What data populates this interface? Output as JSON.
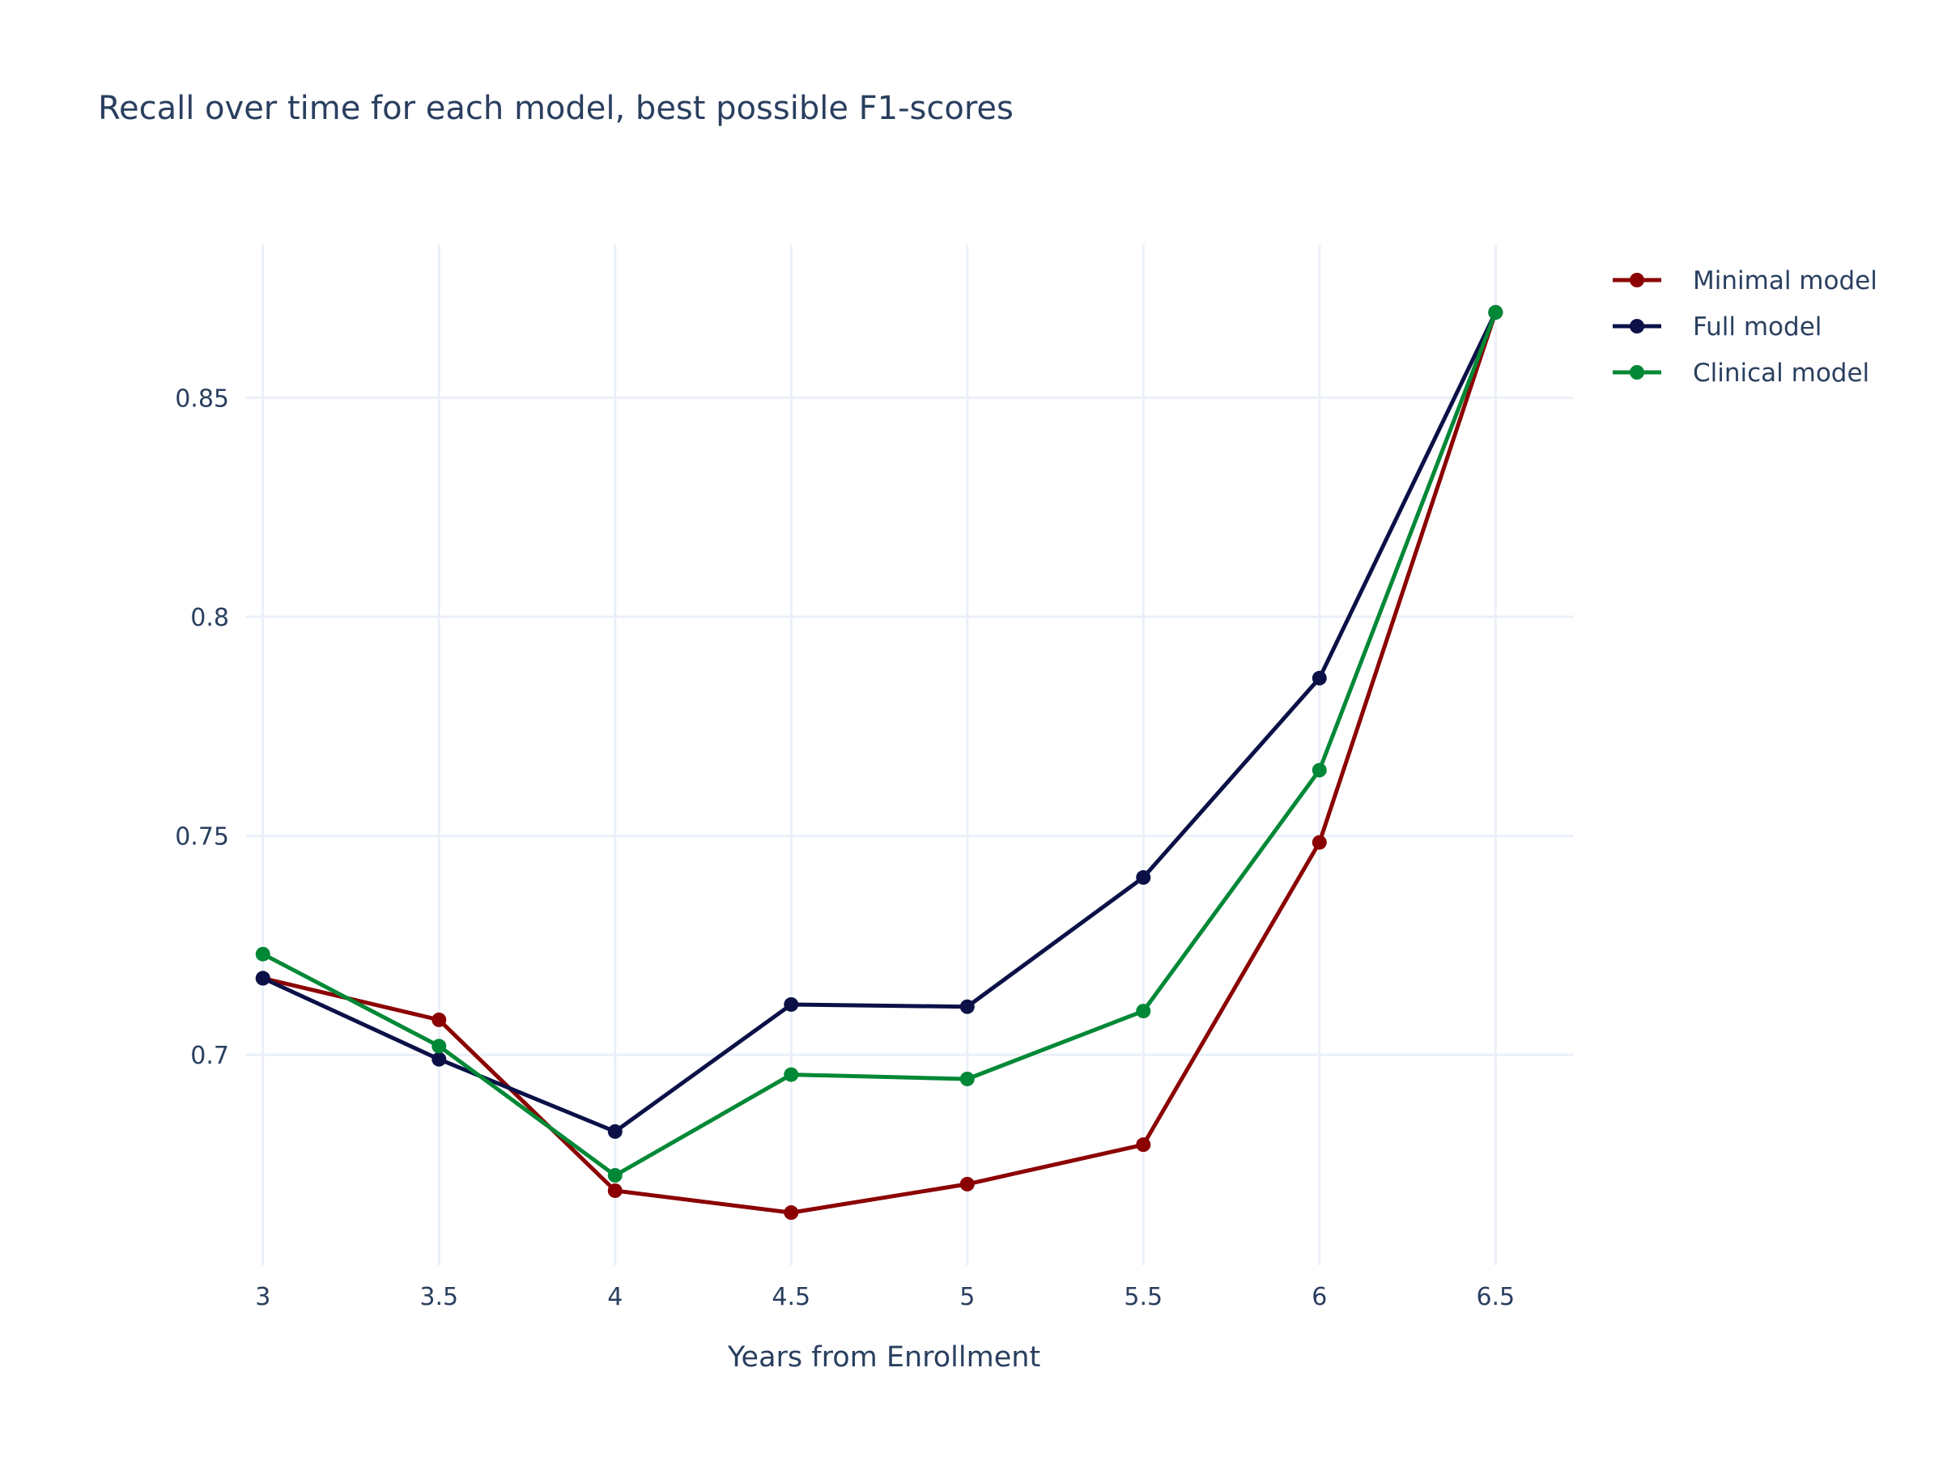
{
  "chart_data": {
    "type": "line",
    "title": "Recall over time for each model, best possible F1-scores",
    "xlabel": "Years from Enrollment",
    "ylabel": "",
    "x": [
      3,
      3.5,
      4,
      4.5,
      5,
      5.5,
      6,
      6.5
    ],
    "x_tick_labels": [
      "3",
      "3.5",
      "4",
      "4.5",
      "5",
      "5.5",
      "6",
      "6.5"
    ],
    "y_ticks": [
      0.7,
      0.75,
      0.8,
      0.85
    ],
    "y_tick_labels": [
      "0.7",
      "0.75",
      "0.8",
      "0.85"
    ],
    "xlim": [
      2.95,
      6.72
    ],
    "ylim": [
      0.652,
      0.885
    ],
    "grid": true,
    "legend_position": "top-right",
    "series": [
      {
        "name": "Minimal model",
        "color": "#8b0000",
        "values": [
          0.7175,
          0.708,
          0.669,
          0.664,
          0.6705,
          0.6795,
          0.7485,
          0.8695
        ]
      },
      {
        "name": "Full model",
        "color": "#0b1147",
        "values": [
          0.7175,
          0.699,
          0.6825,
          0.7115,
          0.711,
          0.7405,
          0.786,
          0.8695
        ]
      },
      {
        "name": "Clinical model",
        "color": "#008836",
        "values": [
          0.723,
          0.702,
          0.6725,
          0.6955,
          0.6945,
          0.71,
          0.765,
          0.8695
        ]
      }
    ]
  }
}
